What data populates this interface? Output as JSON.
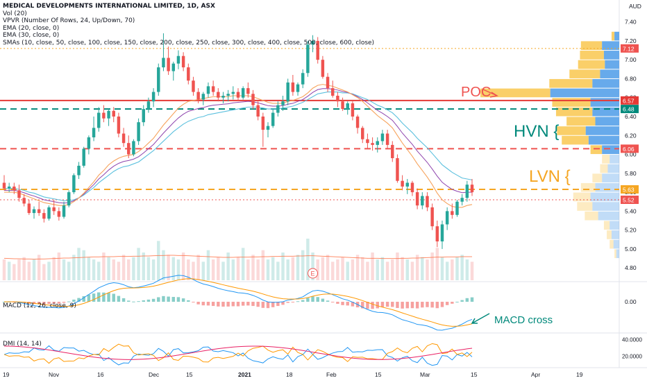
{
  "chart_data": {
    "type": "candlestick",
    "title": "MEDICAL DEVELOPMENTS INTERNATIONAL LIMITED, 1D, ASX",
    "currency": "AUD",
    "indicators": [
      "Vol (20)",
      "VPVR (Number Of Rows, 24, Up/Down, 70)",
      "EMA (20, close, 0)",
      "EMA (30, close, 0)",
      "SMAs (10, close, 50, close, 100, close, 150, close, 200, close, 250, close, 300, close, 400, close, 500, close, 600, close)"
    ],
    "price_ylim": [
      4.75,
      7.5
    ],
    "price_ticks": [
      "7.40",
      "7.20",
      "7.00",
      "6.80",
      "6.60",
      "6.40",
      "6.20",
      "6.00",
      "5.80",
      "5.60",
      "5.40",
      "5.20",
      "5.00",
      "4.80"
    ],
    "x_ticks": [
      "19",
      "Nov",
      "16",
      "Dec",
      "15",
      "2021",
      "18",
      "Feb",
      "15",
      "Mar",
      "15",
      "Apr",
      "19"
    ],
    "candles": [
      [
        5.7,
        5.78,
        5.62,
        5.64
      ],
      [
        5.64,
        5.7,
        5.6,
        5.66
      ],
      [
        5.66,
        5.7,
        5.58,
        5.62
      ],
      [
        5.62,
        5.68,
        5.5,
        5.54
      ],
      [
        5.54,
        5.58,
        5.45,
        5.48
      ],
      [
        5.48,
        5.52,
        5.36,
        5.38
      ],
      [
        5.38,
        5.45,
        5.32,
        5.42
      ],
      [
        5.42,
        5.5,
        5.35,
        5.38
      ],
      [
        5.38,
        5.42,
        5.28,
        5.32
      ],
      [
        5.32,
        5.46,
        5.3,
        5.44
      ],
      [
        5.44,
        5.52,
        5.36,
        5.4
      ],
      [
        5.4,
        5.44,
        5.3,
        5.34
      ],
      [
        5.34,
        5.5,
        5.32,
        5.46
      ],
      [
        5.46,
        5.62,
        5.44,
        5.6
      ],
      [
        5.6,
        5.8,
        5.58,
        5.78
      ],
      [
        5.78,
        5.92,
        5.74,
        5.88
      ],
      [
        5.88,
        6.08,
        5.86,
        6.06
      ],
      [
        6.06,
        6.2,
        6.0,
        6.18
      ],
      [
        6.18,
        6.4,
        6.14,
        6.28
      ],
      [
        6.28,
        6.5,
        6.24,
        6.44
      ],
      [
        6.44,
        6.52,
        6.34,
        6.38
      ],
      [
        6.38,
        6.48,
        6.3,
        6.46
      ],
      [
        6.46,
        6.5,
        6.34,
        6.4
      ],
      [
        6.4,
        6.44,
        6.18,
        6.22
      ],
      [
        6.22,
        6.28,
        6.08,
        6.12
      ],
      [
        6.12,
        6.2,
        5.96,
        6.0
      ],
      [
        6.0,
        6.16,
        5.98,
        6.14
      ],
      [
        6.14,
        6.38,
        6.1,
        6.34
      ],
      [
        6.34,
        6.52,
        6.3,
        6.48
      ],
      [
        6.48,
        6.6,
        6.44,
        6.56
      ],
      [
        6.56,
        6.7,
        6.5,
        6.66
      ],
      [
        6.66,
        6.96,
        6.62,
        6.92
      ],
      [
        6.92,
        7.28,
        6.88,
        7.02
      ],
      [
        7.02,
        7.14,
        6.84,
        6.88
      ],
      [
        6.88,
        6.98,
        6.78,
        6.96
      ],
      [
        6.96,
        7.1,
        6.9,
        7.04
      ],
      [
        7.04,
        7.08,
        6.88,
        6.92
      ],
      [
        6.92,
        6.96,
        6.74,
        6.78
      ],
      [
        6.78,
        6.82,
        6.62,
        6.66
      ],
      [
        6.66,
        6.7,
        6.54,
        6.58
      ],
      [
        6.58,
        6.66,
        6.52,
        6.64
      ],
      [
        6.64,
        6.76,
        6.6,
        6.72
      ],
      [
        6.72,
        6.78,
        6.62,
        6.66
      ],
      [
        6.66,
        6.7,
        6.56,
        6.6
      ],
      [
        6.6,
        6.66,
        6.54,
        6.62
      ],
      [
        6.62,
        6.68,
        6.56,
        6.64
      ],
      [
        6.64,
        6.72,
        6.58,
        6.66
      ],
      [
        6.66,
        6.7,
        6.56,
        6.6
      ],
      [
        6.6,
        6.72,
        6.58,
        6.7
      ],
      [
        6.7,
        6.76,
        6.6,
        6.64
      ],
      [
        6.64,
        6.68,
        6.48,
        6.52
      ],
      [
        6.52,
        6.56,
        6.36,
        6.4
      ],
      [
        6.4,
        6.44,
        6.08,
        6.26
      ],
      [
        6.26,
        6.34,
        6.18,
        6.3
      ],
      [
        6.3,
        6.48,
        6.28,
        6.44
      ],
      [
        6.44,
        6.56,
        6.4,
        6.52
      ],
      [
        6.52,
        6.62,
        6.46,
        6.56
      ],
      [
        6.56,
        6.8,
        6.52,
        6.76
      ],
      [
        6.76,
        6.84,
        6.62,
        6.66
      ],
      [
        6.66,
        6.76,
        6.62,
        6.74
      ],
      [
        6.74,
        6.9,
        6.7,
        6.86
      ],
      [
        6.86,
        7.2,
        6.82,
        7.16
      ],
      [
        7.16,
        7.26,
        7.08,
        7.2
      ],
      [
        7.2,
        7.24,
        6.96,
        7.0
      ],
      [
        7.0,
        7.04,
        6.8,
        6.82
      ],
      [
        6.82,
        6.86,
        6.66,
        6.7
      ],
      [
        6.7,
        6.78,
        6.6,
        6.62
      ],
      [
        6.62,
        6.66,
        6.5,
        6.56
      ],
      [
        6.56,
        6.6,
        6.46,
        6.48
      ],
      [
        6.48,
        6.56,
        6.42,
        6.54
      ],
      [
        6.54,
        6.56,
        6.36,
        6.4
      ],
      [
        6.4,
        6.42,
        6.22,
        6.28
      ],
      [
        6.28,
        6.3,
        6.12,
        6.16
      ],
      [
        6.16,
        6.22,
        6.06,
        6.12
      ],
      [
        6.12,
        6.18,
        6.04,
        6.1
      ],
      [
        6.1,
        6.18,
        6.02,
        6.14
      ],
      [
        6.14,
        6.26,
        6.1,
        6.22
      ],
      [
        6.22,
        6.26,
        6.06,
        6.1
      ],
      [
        6.1,
        6.14,
        5.92,
        5.96
      ],
      [
        5.96,
        6.0,
        5.7,
        5.72
      ],
      [
        5.72,
        5.78,
        5.62,
        5.66
      ],
      [
        5.66,
        5.74,
        5.58,
        5.7
      ],
      [
        5.7,
        5.72,
        5.56,
        5.6
      ],
      [
        5.6,
        5.64,
        5.42,
        5.46
      ],
      [
        5.46,
        5.6,
        5.42,
        5.56
      ],
      [
        5.56,
        5.6,
        5.4,
        5.44
      ],
      [
        5.44,
        5.48,
        5.2,
        5.24
      ],
      [
        5.24,
        5.3,
        5.02,
        5.08
      ],
      [
        5.08,
        5.3,
        5.0,
        5.26
      ],
      [
        5.26,
        5.44,
        5.2,
        5.4
      ],
      [
        5.4,
        5.48,
        5.32,
        5.36
      ],
      [
        5.36,
        5.52,
        5.34,
        5.5
      ],
      [
        5.5,
        5.58,
        5.46,
        5.54
      ],
      [
        5.54,
        5.72,
        5.5,
        5.68
      ],
      [
        5.68,
        5.74,
        5.56,
        5.6
      ]
    ],
    "ema20": [
      5.6,
      5.6,
      5.6,
      5.59,
      5.57,
      5.55,
      5.53,
      5.51,
      5.49,
      5.48,
      5.47,
      5.46,
      5.46,
      5.47,
      5.5,
      5.54,
      5.59,
      5.65,
      5.71,
      5.78,
      5.83,
      5.89,
      5.93,
      5.96,
      5.98,
      5.99,
      6.0,
      6.03,
      6.07,
      6.12,
      6.17,
      6.24,
      6.31,
      6.37,
      6.43,
      6.49,
      6.53,
      6.56,
      6.57,
      6.58,
      6.59,
      6.6,
      6.61,
      6.61,
      6.61,
      6.61,
      6.62,
      6.62,
      6.62,
      6.62,
      6.61,
      6.59,
      6.57,
      6.55,
      6.54,
      6.54,
      6.54,
      6.56,
      6.57,
      6.59,
      6.61,
      6.65,
      6.7,
      6.73,
      6.74,
      6.73,
      6.72,
      6.7,
      6.68,
      6.66,
      6.63,
      6.6,
      6.56,
      6.51,
      6.46,
      6.41,
      6.37,
      6.33,
      6.28,
      6.2,
      6.12,
      6.05,
      5.98,
      5.9,
      5.83,
      5.76,
      5.68,
      5.59,
      5.52,
      5.48,
      5.45,
      5.44,
      5.44,
      5.46,
      5.47
    ],
    "ema30": [
      5.64,
      5.64,
      5.64,
      5.63,
      5.62,
      5.6,
      5.59,
      5.57,
      5.55,
      5.54,
      5.53,
      5.52,
      5.51,
      5.51,
      5.52,
      5.54,
      5.57,
      5.61,
      5.65,
      5.7,
      5.74,
      5.78,
      5.82,
      5.85,
      5.87,
      5.88,
      5.9,
      5.92,
      5.96,
      6.0,
      6.04,
      6.09,
      6.14,
      6.19,
      6.24,
      6.28,
      6.32,
      6.35,
      6.37,
      6.39,
      6.4,
      6.42,
      6.43,
      6.44,
      6.45,
      6.46,
      6.47,
      6.48,
      6.49,
      6.5,
      6.5,
      6.5,
      6.49,
      6.48,
      6.48,
      6.48,
      6.49,
      6.5,
      6.51,
      6.53,
      6.55,
      6.58,
      6.61,
      6.64,
      6.65,
      6.66,
      6.66,
      6.66,
      6.65,
      6.65,
      6.64,
      6.62,
      6.6,
      6.58,
      6.55,
      6.52,
      6.5,
      6.47,
      6.44,
      6.39,
      6.33,
      6.28,
      6.23,
      6.17,
      6.12,
      6.07,
      6.01,
      5.95,
      5.89,
      5.85,
      5.81,
      5.78,
      5.75,
      5.74,
      5.73
    ],
    "volume": [
      9,
      8,
      7,
      9,
      10,
      8,
      9,
      11,
      7,
      8,
      10,
      12,
      9,
      8,
      11,
      14,
      13,
      10,
      9,
      8,
      12,
      10,
      9,
      8,
      11,
      9,
      10,
      14,
      12,
      10,
      9,
      17,
      13,
      11,
      10,
      9,
      12,
      9,
      8,
      11,
      8,
      13,
      9,
      10,
      8,
      12,
      9,
      10,
      14,
      9,
      11,
      9,
      13,
      9,
      10,
      8,
      12,
      9,
      10,
      11,
      13,
      18,
      12,
      9,
      10,
      11,
      8,
      9,
      10,
      8,
      9,
      11,
      10,
      8,
      12,
      9,
      10,
      8,
      9,
      12,
      10,
      9,
      8,
      11,
      10,
      9,
      12,
      14,
      10,
      8,
      9,
      10,
      11,
      9,
      8
    ],
    "volume_ma": [
      9.5,
      9.4,
      9.3,
      9.3,
      9.2,
      9.2,
      9.1,
      9.2,
      9.2,
      9.3,
      9.4,
      9.5,
      9.6,
      9.6,
      9.7,
      9.8,
      9.9,
      10.0,
      10.1,
      10.1,
      10.2,
      10.2,
      10.2,
      10.3,
      10.3,
      10.3,
      10.4,
      10.4,
      10.5,
      10.5,
      10.6,
      10.7,
      10.7,
      10.8,
      10.8,
      10.7,
      10.7,
      10.6,
      10.5,
      10.4,
      10.3,
      10.2,
      10.1,
      10.0,
      9.9,
      9.9,
      9.9,
      10.0,
      10.0,
      10.0,
      10.1,
      10.1,
      10.2,
      10.2,
      10.3,
      10.3,
      10.4,
      10.4,
      10.4,
      10.5,
      10.5,
      10.6,
      10.6,
      10.5,
      10.4,
      10.3,
      10.2,
      10.1,
      10.0,
      9.9,
      9.8,
      9.7,
      9.6,
      9.5,
      9.5,
      9.5,
      9.4,
      9.4,
      9.4,
      9.4,
      9.5,
      9.5,
      9.6,
      9.6,
      9.7,
      9.8,
      9.9,
      10.0,
      10.0,
      10.1,
      10.1,
      10.1,
      10.2,
      10.2,
      10.2
    ],
    "macd_label": "MACD (12, 26, close, 9)",
    "macd_ylim": [
      -0.35,
      0.22
    ],
    "macd_tick": "0.00",
    "dmi_label": "DMI (14, 14)",
    "dmi_ylim": [
      8,
      46
    ],
    "dmi_ticks": [
      "40.0000",
      "20.0000"
    ],
    "price_labels": {
      "p712": {
        "text": "7.12",
        "value": 7.12,
        "color": "#ef5350"
      },
      "p657": {
        "text": "6.57",
        "value": 6.57,
        "color": "#e53935"
      },
      "p648": {
        "text": "6.48",
        "value": 6.48,
        "color": "#00897b"
      },
      "p606": {
        "text": "6.06",
        "value": 6.06,
        "color": "#ef5350"
      },
      "p563": {
        "text": "5.63",
        "value": 5.63,
        "color": "#f5a623"
      },
      "p552": {
        "text": "5.52",
        "value": 5.52,
        "color": "#ef5350"
      }
    },
    "levels": [
      {
        "value": 6.57,
        "color": "#e53935",
        "style": "solid"
      },
      {
        "value": 6.48,
        "color": "#00897b",
        "style": "dashed"
      },
      {
        "value": 6.06,
        "color": "#ef5350",
        "style": "dashed"
      },
      {
        "value": 5.63,
        "color": "#f5a623",
        "style": "dashed"
      }
    ],
    "vpvr_rows": [
      {
        "price": 7.25,
        "up": 5,
        "down": 3
      },
      {
        "price": 7.15,
        "up": 18,
        "down": 22
      },
      {
        "price": 7.05,
        "up": 16,
        "down": 25
      },
      {
        "price": 6.95,
        "up": 15,
        "down": 28
      },
      {
        "price": 6.85,
        "up": 20,
        "down": 32
      },
      {
        "price": 6.75,
        "up": 28,
        "down": 45
      },
      {
        "price": 6.65,
        "up": 72,
        "down": 73
      },
      {
        "price": 6.55,
        "up": 30,
        "down": 40
      },
      {
        "price": 6.45,
        "up": 28,
        "down": 38
      },
      {
        "price": 6.35,
        "up": 25,
        "down": 30
      },
      {
        "price": 6.25,
        "up": 35,
        "down": 30
      },
      {
        "price": 6.15,
        "up": 32,
        "down": 28
      },
      {
        "price": 6.05,
        "up": 18,
        "down": 12
      },
      {
        "price": 5.95,
        "up": 10,
        "down": 8
      },
      {
        "price": 5.85,
        "up": 12,
        "down": 8
      },
      {
        "price": 5.75,
        "up": 18,
        "down": 10
      },
      {
        "price": 5.65,
        "up": 25,
        "down": 15
      },
      {
        "price": 5.55,
        "up": 30,
        "down": 18
      },
      {
        "price": 5.45,
        "up": 28,
        "down": 16
      },
      {
        "price": 5.35,
        "up": 22,
        "down": 14
      },
      {
        "price": 5.25,
        "up": 10,
        "down": 6
      },
      {
        "price": 5.15,
        "up": 8,
        "down": 5
      },
      {
        "price": 5.05,
        "up": 6,
        "down": 4
      },
      {
        "price": 4.95,
        "up": 3,
        "down": 2
      }
    ],
    "annotations": {
      "poc": {
        "text": "POC",
        "color": "#ef5350"
      },
      "hvn": {
        "text": "HVN {",
        "color": "#00897b"
      },
      "lvn": {
        "text": "LVN {",
        "color": "#f5a623"
      },
      "macd_cross": {
        "text": "MACD cross",
        "color": "#00897b"
      },
      "earnings": {
        "text": "E",
        "color": "#ef5350"
      }
    },
    "colors": {
      "up": "#26a69a",
      "down": "#ef5350",
      "ema20": "#f7a35c",
      "ema30": "#5bc0de",
      "sma10": "#8e44ad",
      "macd": "#2196f3",
      "signal": "#ff9800",
      "plus_di": "#2196f3",
      "minus_di": "#ff9800",
      "adx": "#e91e63"
    }
  }
}
